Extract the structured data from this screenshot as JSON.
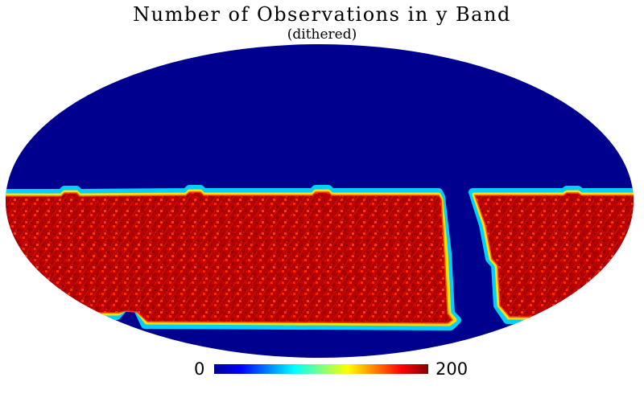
{
  "title": "Number of Observations in y Band",
  "subtitle": "(dithered)",
  "projection": "mollweide",
  "colormap": "jet",
  "colors": {
    "background_region": "#00008f",
    "covered_region": "#b40000",
    "covered_dark": "#8b0000",
    "covered_bright": "#ff2a00",
    "covered_hot": "#ff7a00",
    "edge_mid": "#00c8ff",
    "edge_outer": "#2aff7a"
  },
  "colorbar": {
    "min_label": "0",
    "max_label": "200",
    "min": 0,
    "max": 200,
    "stops": [
      "#00008f",
      "#0000ff",
      "#0080ff",
      "#00ffff",
      "#80ff80",
      "#ffff00",
      "#ff8000",
      "#ff0000",
      "#800000"
    ]
  }
}
